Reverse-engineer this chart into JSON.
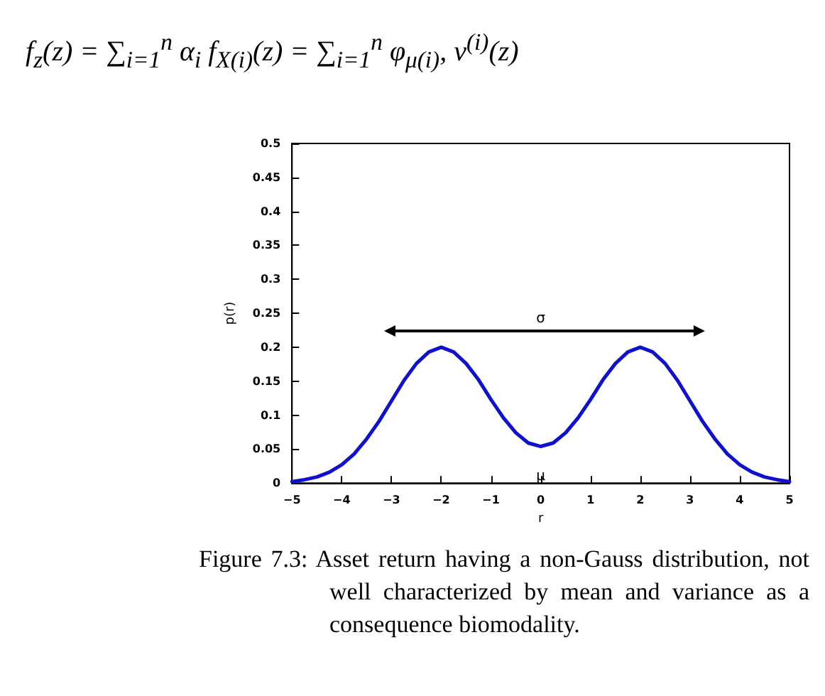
{
  "chart_data": {
    "type": "line",
    "title": "f$_{z}$(z) = ∑$_{i=1}$$^{n}$ α$_{i}$ f$_{X(i)}$(z) = ∑$_{i=1}$$^{n}$ φ$_{μ(i)}$, v$^{(i)}$(z)",
    "xlabel": "r",
    "ylabel": "p(r)",
    "x": [
      -5,
      -4.75,
      -4.5,
      -4.25,
      -4,
      -3.75,
      -3.5,
      -3.25,
      -3,
      -2.75,
      -2.5,
      -2.25,
      -2,
      -1.75,
      -1.5,
      -1.25,
      -1,
      -0.75,
      -0.5,
      -0.25,
      0,
      0.25,
      0.5,
      0.75,
      1,
      1.25,
      1.5,
      1.75,
      2,
      2.25,
      2.5,
      2.75,
      3,
      3.25,
      3.5,
      3.75,
      4,
      4.25,
      4.5,
      4.75,
      5
    ],
    "series": [
      {
        "color": "#1010d0",
        "values": [
          0.002,
          0.005,
          0.009,
          0.016,
          0.027,
          0.043,
          0.065,
          0.091,
          0.121,
          0.151,
          0.176,
          0.193,
          0.2,
          0.193,
          0.176,
          0.152,
          0.123,
          0.096,
          0.074,
          0.059,
          0.054,
          0.059,
          0.074,
          0.096,
          0.123,
          0.152,
          0.176,
          0.193,
          0.2,
          0.193,
          0.176,
          0.151,
          0.121,
          0.091,
          0.065,
          0.043,
          0.027,
          0.016,
          0.009,
          0.005,
          0.002
        ]
      }
    ],
    "xlim": [
      -5,
      5
    ],
    "xticks": [
      {
        "value": -5,
        "label": "−5"
      },
      {
        "value": -4,
        "label": "−4"
      },
      {
        "value": -3,
        "label": "−3"
      },
      {
        "value": -2,
        "label": "−2"
      },
      {
        "value": -1,
        "label": "−1"
      },
      0,
      1,
      2,
      3,
      4,
      5
    ],
    "ylim": [
      0,
      0.5
    ],
    "yticks": [
      0,
      0.05,
      0.1,
      0.15,
      0.2,
      0.25,
      0.3,
      0.35,
      0.4,
      0.45,
      0.5
    ],
    "grid": false,
    "marker": "none",
    "line_style": "solid",
    "annotations": [
      "σ",
      "μ",
      "Figure 7.3: Asset return having a non-Gauss distribution, not well characterized by mean and variance as a consequence biomodality."
    ]
  }
}
